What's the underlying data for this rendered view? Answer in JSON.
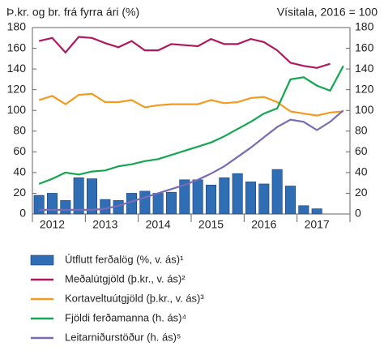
{
  "chart_data": {
    "type": "bar-line",
    "ylabel": "Þ.kr. og br. frá fyrra ári (%)",
    "y2label": "Vísitala, 2016 = 100",
    "categories": [
      null,
      "2012",
      null,
      null,
      null,
      "2013",
      null,
      null,
      null,
      "2014",
      null,
      null,
      null,
      "2015",
      null,
      null,
      null,
      "2016",
      null,
      null,
      null,
      "2017",
      null,
      null
    ],
    "ylim": [
      0,
      180
    ],
    "yticks": [
      0,
      20,
      40,
      60,
      80,
      100,
      120,
      140,
      160,
      180
    ],
    "y2lim": [
      0,
      180
    ],
    "y2ticks": [
      0,
      20,
      40,
      60,
      80,
      100,
      120,
      140,
      160,
      180
    ],
    "grid": false,
    "series": [
      {
        "name": "Útflutt ferðalög (%, v. ás)¹",
        "kind": "bar",
        "color": "#2f6db5",
        "values": [
          18,
          20,
          13,
          35,
          34,
          14,
          13,
          20,
          22,
          20,
          21,
          33,
          33,
          28,
          35,
          39,
          31,
          29,
          43,
          27,
          8,
          5,
          null,
          null
        ]
      },
      {
        "name": "Meðalútgjöld (þ.kr., v. ás)²",
        "kind": "line",
        "color": "#b0185e",
        "values": [
          167,
          170,
          156,
          171,
          170,
          165,
          161,
          167,
          158,
          158,
          164,
          163,
          162,
          169,
          164,
          164,
          169,
          166,
          158,
          146,
          143,
          141,
          145,
          null
        ]
      },
      {
        "name": "Kortaveltuútgjöld (þ.kr., v. ás)³",
        "kind": "line",
        "color": "#f39a1f",
        "values": [
          110,
          114,
          106,
          115,
          116,
          108,
          108,
          110,
          103,
          105,
          106,
          106,
          106,
          110,
          107,
          108,
          112,
          113,
          108,
          99,
          97,
          95,
          98,
          99
        ]
      },
      {
        "name": "Fjöldi ferðamanna (h. ás)⁴",
        "kind": "line",
        "color": "#14a650",
        "axis": "y2",
        "values": [
          29,
          34,
          40,
          38,
          41,
          42,
          46,
          48,
          51,
          53,
          57,
          61,
          65,
          69,
          75,
          82,
          89,
          97,
          102,
          130,
          132,
          124,
          119,
          143
        ]
      },
      {
        "name": "Leitarniðurstöður (h. ás)⁵",
        "kind": "line",
        "color": "#7a6bb3",
        "axis": "y2",
        "values": [
          4,
          4,
          4,
          4,
          4,
          5,
          8,
          12,
          16,
          20,
          24,
          28,
          33,
          39,
          46,
          55,
          64,
          74,
          84,
          91,
          89,
          81,
          89,
          100
        ]
      }
    ]
  }
}
